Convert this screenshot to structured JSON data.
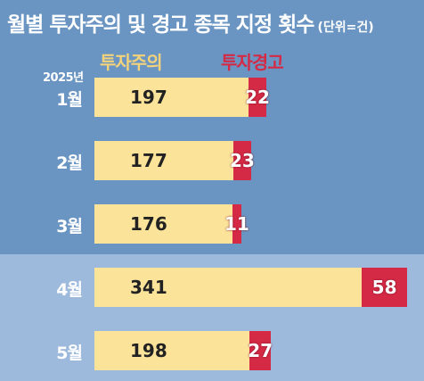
{
  "title": "월별 투자주의 및 경고 종목 지정 횟수",
  "unit": "(단위=건)",
  "chart_data": {
    "type": "bar",
    "orientation": "horizontal",
    "stacked": true,
    "year_label": "2025년",
    "categories": [
      "1월",
      "2월",
      "3월",
      "4월",
      "5월"
    ],
    "series": [
      {
        "name": "투자주의",
        "values": [
          197,
          177,
          176,
          341,
          198
        ],
        "color": "#fbe39a"
      },
      {
        "name": "투자경고",
        "values": [
          22,
          23,
          11,
          58,
          27
        ],
        "color": "#d42a46"
      }
    ],
    "highlighted_category": "4월",
    "legend": "top"
  }
}
